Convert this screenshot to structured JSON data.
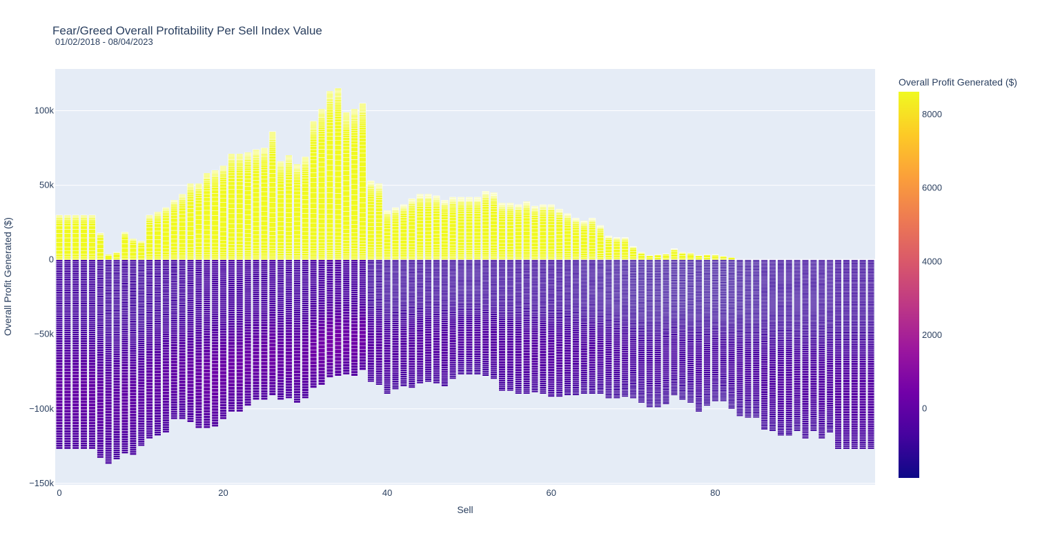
{
  "chart_data": {
    "type": "bar",
    "title": "Fear/Greed Overall Profitability Per Sell Index Value",
    "subtitle": "01/02/2018 - 08/04/2023",
    "xlabel": "Sell",
    "ylabel": "Overall Profit Generated ($)",
    "xlim": [
      -0.5,
      99.5
    ],
    "ylim": [
      -151000,
      128000
    ],
    "x_ticks": [
      0,
      20,
      40,
      60,
      80
    ],
    "x_tick_labels": [
      "0",
      "20",
      "40",
      "60",
      "80"
    ],
    "y_ticks": [
      -150000,
      -100000,
      -50000,
      0,
      50000,
      100000
    ],
    "y_tick_labels": [
      "−150k",
      "−100k",
      "−50k",
      "0",
      "50k",
      "100k"
    ],
    "barmode": "relative",
    "segments_per_bar": 100,
    "colorbar": {
      "title": "Overall Profit Generated ($)",
      "range": [
        -1900,
        8600
      ],
      "tick_values": [
        0,
        2000,
        4000,
        6000,
        8000
      ],
      "tick_labels": [
        "0",
        "2000",
        "4000",
        "6000",
        "8000"
      ],
      "colorscale": [
        "#0d0887",
        "#46039f",
        "#7201a8",
        "#9c179e",
        "#bd3786",
        "#d8576b",
        "#ed7953",
        "#fb9f3a",
        "#fdca26",
        "#f0f921"
      ]
    },
    "x": [
      0,
      1,
      2,
      3,
      4,
      5,
      6,
      7,
      8,
      9,
      10,
      11,
      12,
      13,
      14,
      15,
      16,
      17,
      18,
      19,
      20,
      21,
      22,
      23,
      24,
      25,
      26,
      27,
      28,
      29,
      30,
      31,
      32,
      33,
      34,
      35,
      36,
      37,
      38,
      39,
      40,
      41,
      42,
      43,
      44,
      45,
      46,
      47,
      48,
      49,
      50,
      51,
      52,
      53,
      54,
      55,
      56,
      57,
      58,
      59,
      60,
      61,
      62,
      63,
      64,
      65,
      66,
      67,
      68,
      69,
      70,
      71,
      72,
      73,
      74,
      75,
      76,
      77,
      78,
      79,
      80,
      81,
      82,
      83,
      84,
      85,
      86,
      87,
      88,
      89,
      90,
      91,
      92,
      93,
      94,
      95,
      96,
      97,
      98,
      99
    ],
    "positive_total": [
      30000,
      30000,
      30000,
      30000,
      30000,
      18000,
      3500,
      5000,
      18500,
      14000,
      12500,
      30000,
      32000,
      35000,
      40000,
      44000,
      51000,
      51000,
      58000,
      60000,
      63000,
      71000,
      71000,
      72000,
      74000,
      75000,
      86000,
      66000,
      70000,
      64000,
      69000,
      93000,
      101000,
      113000,
      115000,
      99000,
      101000,
      105000,
      53000,
      51000,
      33000,
      35000,
      37000,
      41000,
      44000,
      44000,
      43000,
      40000,
      42000,
      42000,
      42000,
      42000,
      46000,
      45000,
      38000,
      38000,
      37000,
      39000,
      36000,
      37000,
      37000,
      34000,
      31000,
      28000,
      26000,
      28000,
      23000,
      16000,
      15000,
      15000,
      9000,
      5000,
      3000,
      3500,
      4000,
      7500,
      5000,
      4500,
      3000,
      3500,
      3500,
      2500,
      1500,
      500,
      300,
      200,
      200,
      100,
      100,
      100,
      0,
      0,
      0,
      0,
      0,
      0,
      0,
      0,
      0,
      0
    ],
    "negative_total": [
      -127000,
      -127000,
      -127000,
      -127000,
      -127000,
      -133000,
      -137000,
      -134000,
      -130000,
      -131000,
      -125000,
      -120000,
      -118000,
      -116000,
      -107000,
      -107000,
      -109000,
      -113000,
      -113000,
      -112000,
      -107000,
      -102000,
      -102000,
      -98000,
      -94000,
      -94000,
      -91000,
      -94000,
      -93000,
      -96000,
      -93000,
      -86000,
      -84000,
      -79000,
      -78000,
      -77000,
      -78000,
      -74000,
      -82000,
      -84000,
      -90000,
      -87000,
      -85000,
      -86000,
      -83000,
      -82000,
      -83000,
      -85000,
      -80000,
      -77000,
      -77000,
      -77000,
      -78000,
      -80000,
      -88000,
      -88000,
      -90000,
      -90000,
      -89000,
      -90000,
      -92000,
      -92000,
      -91000,
      -91000,
      -90000,
      -90000,
      -90000,
      -93000,
      -93000,
      -92000,
      -93000,
      -96000,
      -99000,
      -99000,
      -97000,
      -91000,
      -94000,
      -96000,
      -102000,
      -98000,
      -95000,
      -95000,
      -100000,
      -105000,
      -106000,
      -106000,
      -114000,
      -115000,
      -118000,
      -118000,
      -115000,
      -120000,
      -115000,
      -120000,
      -116000,
      -127000,
      -127000,
      -127000,
      -127000,
      -127000
    ]
  }
}
